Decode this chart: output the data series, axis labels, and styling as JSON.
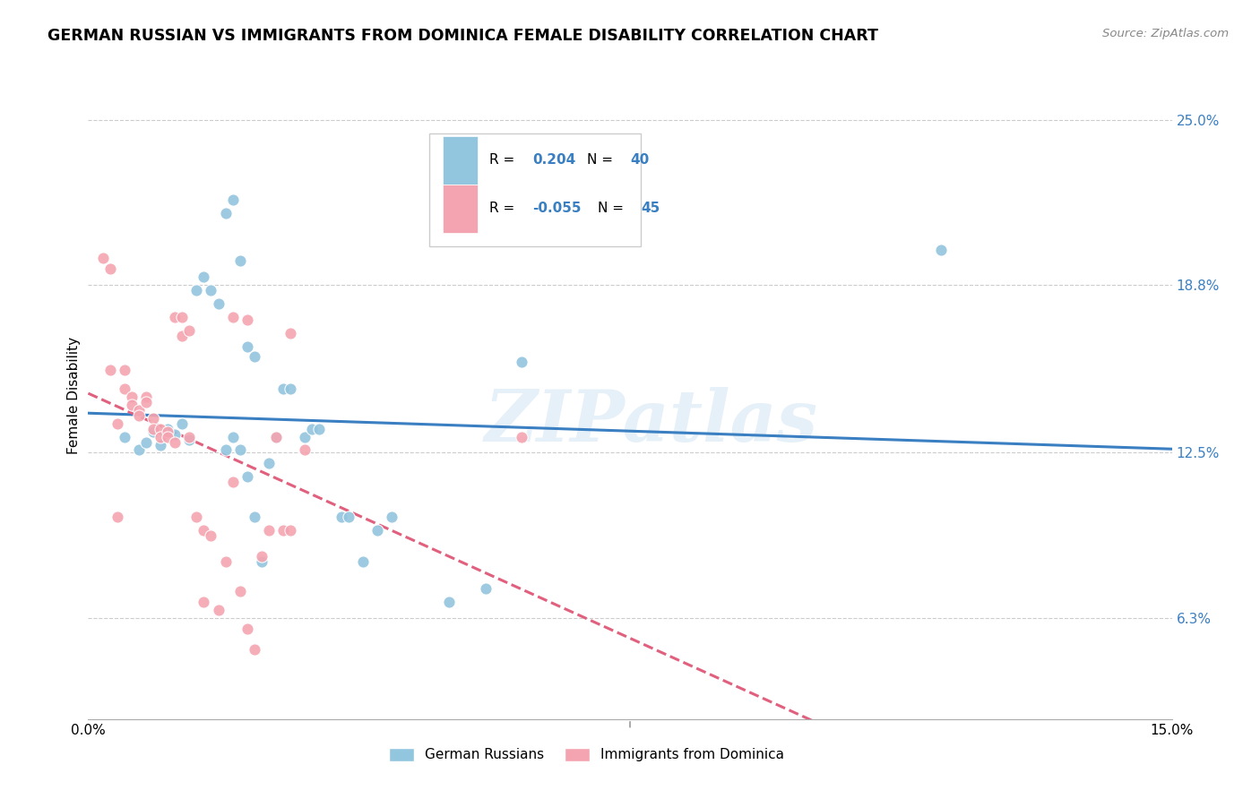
{
  "title": "GERMAN RUSSIAN VS IMMIGRANTS FROM DOMINICA FEMALE DISABILITY CORRELATION CHART",
  "source": "Source: ZipAtlas.com",
  "ylabel": "Female Disability",
  "yticks": [
    0.063,
    0.125,
    0.188,
    0.25
  ],
  "ytick_labels": [
    "6.3%",
    "12.5%",
    "18.8%",
    "25.0%"
  ],
  "xmin": 0.0,
  "xmax": 0.15,
  "ymin": 0.025,
  "ymax": 0.268,
  "blue_color": "#92c5de",
  "pink_color": "#f4a4b0",
  "trendline_blue": "#3a7fc1",
  "trendline_pink": "#e0607e",
  "watermark": "ZIPatlas",
  "blue_scatter": [
    [
      0.005,
      0.131
    ],
    [
      0.007,
      0.126
    ],
    [
      0.008,
      0.129
    ],
    [
      0.009,
      0.133
    ],
    [
      0.01,
      0.128
    ],
    [
      0.011,
      0.134
    ],
    [
      0.012,
      0.132
    ],
    [
      0.013,
      0.136
    ],
    [
      0.014,
      0.13
    ],
    [
      0.015,
      0.186
    ],
    [
      0.016,
      0.191
    ],
    [
      0.017,
      0.186
    ],
    [
      0.018,
      0.181
    ],
    [
      0.019,
      0.215
    ],
    [
      0.02,
      0.22
    ],
    [
      0.021,
      0.197
    ],
    [
      0.022,
      0.165
    ],
    [
      0.023,
      0.161
    ],
    [
      0.019,
      0.126
    ],
    [
      0.02,
      0.131
    ],
    [
      0.021,
      0.126
    ],
    [
      0.022,
      0.116
    ],
    [
      0.023,
      0.101
    ],
    [
      0.024,
      0.084
    ],
    [
      0.025,
      0.121
    ],
    [
      0.026,
      0.131
    ],
    [
      0.027,
      0.149
    ],
    [
      0.028,
      0.149
    ],
    [
      0.03,
      0.131
    ],
    [
      0.031,
      0.134
    ],
    [
      0.032,
      0.134
    ],
    [
      0.035,
      0.101
    ],
    [
      0.036,
      0.101
    ],
    [
      0.038,
      0.084
    ],
    [
      0.04,
      0.096
    ],
    [
      0.042,
      0.101
    ],
    [
      0.05,
      0.069
    ],
    [
      0.055,
      0.074
    ],
    [
      0.06,
      0.159
    ],
    [
      0.118,
      0.201
    ]
  ],
  "pink_scatter": [
    [
      0.002,
      0.198
    ],
    [
      0.003,
      0.194
    ],
    [
      0.004,
      0.136
    ],
    [
      0.005,
      0.156
    ],
    [
      0.005,
      0.149
    ],
    [
      0.006,
      0.146
    ],
    [
      0.006,
      0.143
    ],
    [
      0.007,
      0.141
    ],
    [
      0.007,
      0.139
    ],
    [
      0.008,
      0.146
    ],
    [
      0.008,
      0.144
    ],
    [
      0.009,
      0.138
    ],
    [
      0.009,
      0.134
    ],
    [
      0.01,
      0.134
    ],
    [
      0.01,
      0.131
    ],
    [
      0.011,
      0.133
    ],
    [
      0.011,
      0.131
    ],
    [
      0.012,
      0.129
    ],
    [
      0.012,
      0.176
    ],
    [
      0.013,
      0.169
    ],
    [
      0.013,
      0.176
    ],
    [
      0.014,
      0.171
    ],
    [
      0.015,
      0.101
    ],
    [
      0.016,
      0.096
    ],
    [
      0.017,
      0.094
    ],
    [
      0.018,
      0.066
    ],
    [
      0.019,
      0.084
    ],
    [
      0.02,
      0.176
    ],
    [
      0.021,
      0.073
    ],
    [
      0.022,
      0.059
    ],
    [
      0.023,
      0.051
    ],
    [
      0.024,
      0.086
    ],
    [
      0.025,
      0.096
    ],
    [
      0.026,
      0.131
    ],
    [
      0.027,
      0.096
    ],
    [
      0.028,
      0.096
    ],
    [
      0.03,
      0.126
    ],
    [
      0.003,
      0.156
    ],
    [
      0.004,
      0.101
    ],
    [
      0.014,
      0.131
    ],
    [
      0.016,
      0.069
    ],
    [
      0.02,
      0.114
    ],
    [
      0.022,
      0.175
    ],
    [
      0.028,
      0.17
    ],
    [
      0.06,
      0.131
    ]
  ]
}
